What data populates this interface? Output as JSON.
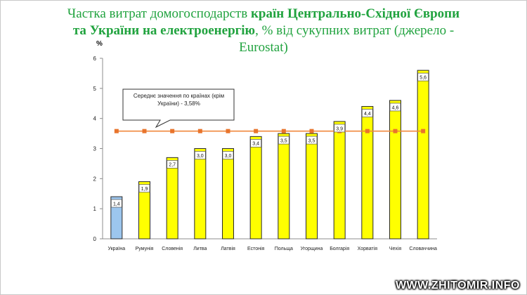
{
  "chart_data": {
    "type": "bar",
    "title_part1": "Частка витрат домогосподарств ",
    "title_bold": "країн Центрально-Східної Європи та України на електроенергію",
    "title_part2": ", % від сукупних витрат (джерело - Eurostat)",
    "ylabel": "%",
    "ylim": [
      0,
      6
    ],
    "yticks": [
      "0",
      "1",
      "2",
      "3",
      "4",
      "5",
      "6"
    ],
    "categories": [
      "Україна",
      "Румунія",
      "Словенія",
      "Литва",
      "Латвія",
      "Естонія",
      "Польща",
      "Угорщина",
      "Болгарія",
      "Хорватія",
      "Чехія",
      "Словаччина"
    ],
    "values": [
      1.4,
      1.9,
      2.7,
      3.0,
      3.0,
      3.4,
      3.5,
      3.5,
      3.9,
      4.4,
      4.6,
      5.6
    ],
    "value_labels": [
      "1,4",
      "1,9",
      "2,7",
      "3,0",
      "3,0",
      "3,4",
      "3,5",
      "3,5",
      "3,9",
      "4,4",
      "4,6",
      "5,6"
    ],
    "highlight_index": 0,
    "average_value": 3.58,
    "annotation": "Середнє значення по країнах (крім України) - 3,58%",
    "colors": {
      "bar": "#ffff00",
      "bar_highlight": "#9cc6ee",
      "bar_stroke": "#2b2b2b",
      "average_line": "#f0883c",
      "average_marker": "#e8742c",
      "title": "#21a33f"
    },
    "grid": false
  },
  "watermark": "WWW.ZHITOMIR.INFO"
}
